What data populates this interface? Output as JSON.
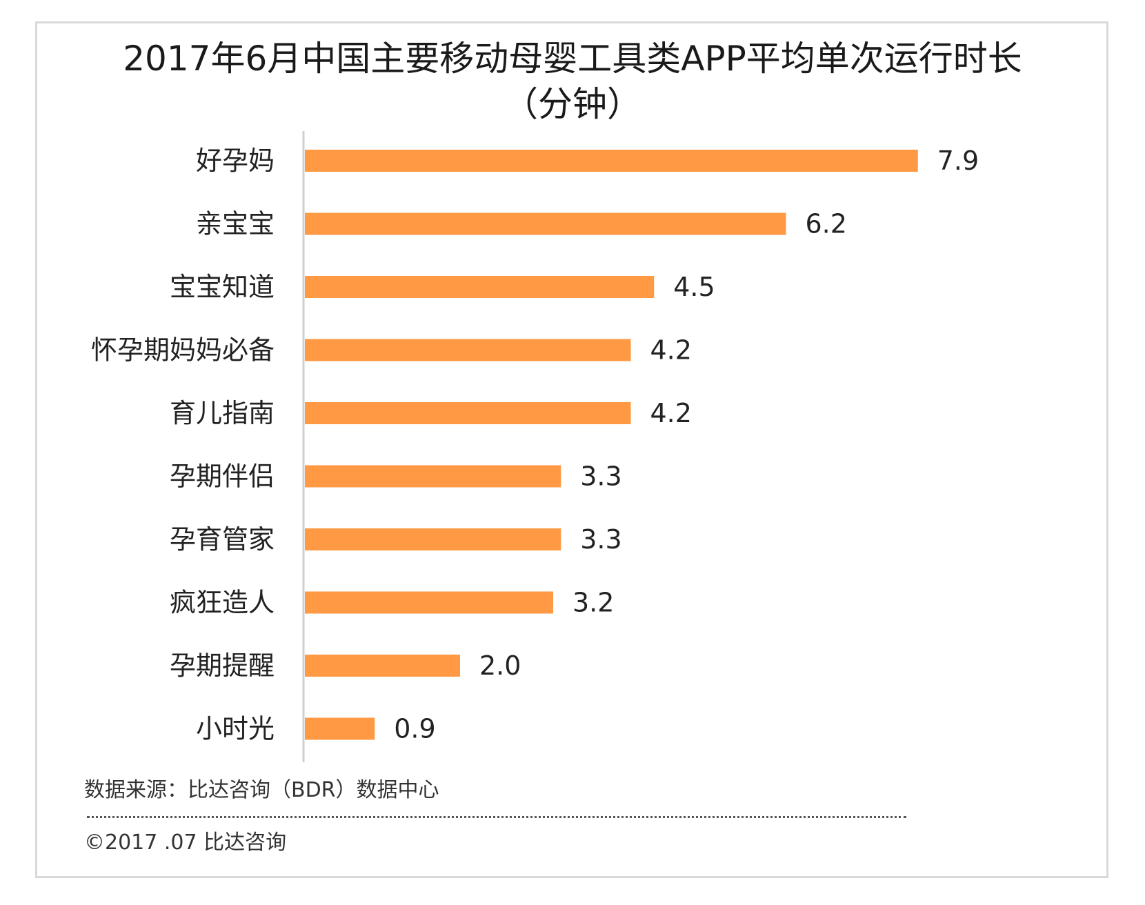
{
  "title_line1": "2017年6月中国主要移动母婴工具类APP平均单次运行时长",
  "title_line2": "（分钟）",
  "source": "数据来源：比达咨询（BDR）数据中心",
  "copyright": "©2017 .07  比达咨询",
  "colors": {
    "bar": "#FF9944",
    "axis": "#d0d0d0",
    "frame": "#d9d9d9"
  },
  "chart_data": {
    "type": "bar",
    "orientation": "horizontal",
    "title": "2017年6月中国主要移动母婴工具类APP平均单次运行时长（分钟）",
    "categories": [
      "好孕妈",
      "亲宝宝",
      "宝宝知道",
      "怀孕期妈妈必备",
      "育儿指南",
      "孕期伴侣",
      "孕育管家",
      "疯狂造人",
      "孕期提醒",
      "小时光"
    ],
    "values": [
      7.9,
      6.2,
      4.5,
      4.2,
      4.2,
      3.3,
      3.3,
      3.2,
      2.0,
      0.9
    ],
    "value_labels": [
      "7.9",
      "6.2",
      "4.5",
      "4.2",
      "4.2",
      "3.3",
      "3.3",
      "3.2",
      "2.0",
      "0.9"
    ],
    "xlabel": "",
    "ylabel": "",
    "grid": false,
    "legend": "none"
  }
}
